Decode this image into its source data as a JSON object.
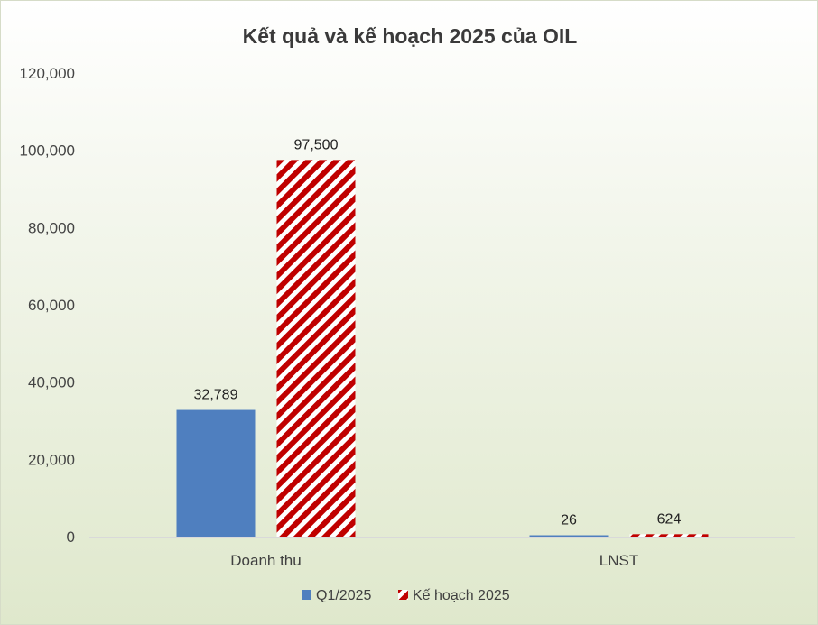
{
  "chart_data": {
    "type": "bar",
    "title": "Kết quả và kế hoạch 2025 của OIL",
    "categories": [
      "Doanh thu",
      "LNST"
    ],
    "series": [
      {
        "name": "Q1/2025",
        "values": [
          32789,
          26
        ],
        "labels": [
          "32,789",
          "26"
        ],
        "color": "#4f7fbf",
        "pattern": "solid"
      },
      {
        "name": "Kế hoạch 2025",
        "values": [
          97500,
          624
        ],
        "labels": [
          "97,500",
          "624"
        ],
        "color": "#c00000",
        "pattern": "diagonal-stripes"
      }
    ],
    "ylim": [
      0,
      120000
    ],
    "yticks": [
      0,
      20000,
      40000,
      60000,
      80000,
      100000,
      120000
    ],
    "ytick_labels": [
      "0",
      "20,000",
      "40,000",
      "60,000",
      "80,000",
      "100,000",
      "120,000"
    ],
    "grid": false,
    "legend": "bottom"
  }
}
